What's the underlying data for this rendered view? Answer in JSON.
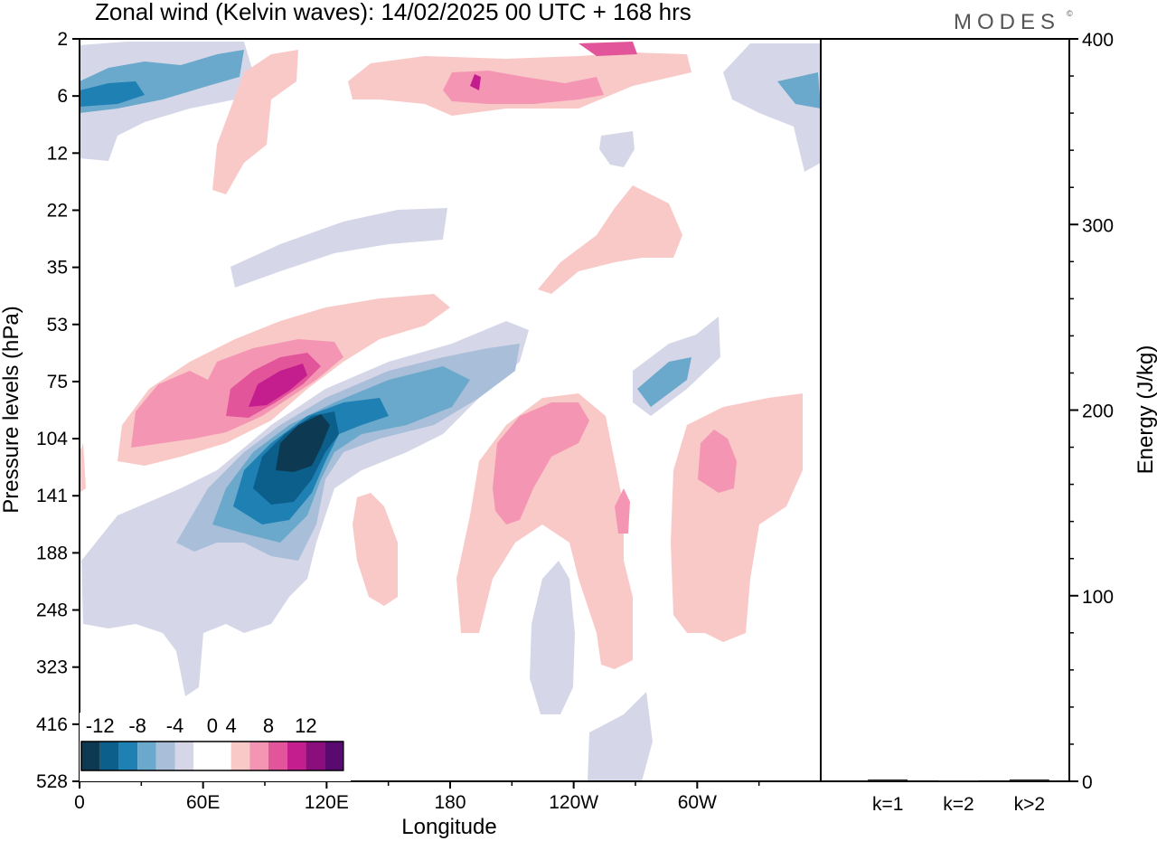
{
  "chart_data": [
    {
      "type": "heatmap",
      "title": "Zonal wind (Kelvin waves):  14/02/2025  00 UTC  + 168 hrs",
      "brand": "MODES",
      "brand_mark": "©",
      "xlabel": "Longitude",
      "ylabel": "Pressure levels (hPa)",
      "x_ticks": [
        "0",
        "60E",
        "120E",
        "180",
        "120W",
        "60W"
      ],
      "x_tick_values": [
        0,
        60,
        120,
        180,
        240,
        300
      ],
      "xlim": [
        0,
        360
      ],
      "y_ticks": [
        "2",
        "6",
        "12",
        "22",
        "35",
        "53",
        "75",
        "104",
        "141",
        "188",
        "248",
        "323",
        "416",
        "528"
      ],
      "y_axis_scale": "categorical pressure levels, top to bottom",
      "legend": {
        "labels": [
          "-12",
          "-8",
          "-4",
          "0",
          "4",
          "8",
          "12"
        ],
        "levels": [
          -14,
          -12,
          -10,
          -8,
          -6,
          -4,
          -2,
          2,
          4,
          6,
          8,
          10,
          12,
          14
        ],
        "colors": [
          "#0d3a52",
          "#0b5f8a",
          "#1f80b4",
          "#6aa9cc",
          "#a9bed9",
          "#d5d7e8",
          "#ffffff",
          "#ffffff",
          "#f9c9c8",
          "#f595b4",
          "#e2559a",
          "#c41e8e",
          "#8a0f7c",
          "#5a0a6e"
        ],
        "placement": "bottom-left"
      },
      "fields": [
        {
          "name": "blue-core",
          "lon_range": [
            82,
            130
          ],
          "level_range": [
            "75",
            "141"
          ],
          "min_value": -14
        },
        {
          "name": "pink-core",
          "lon_range": [
            60,
            115
          ],
          "level_range": [
            "53",
            "104"
          ],
          "max_value": 10
        },
        {
          "name": "pink-right",
          "lon_range": [
            195,
            265
          ],
          "level_range": [
            "75",
            "323"
          ],
          "max_value": 6
        },
        {
          "name": "pink-far-right",
          "lon_range": [
            285,
            350
          ],
          "level_range": [
            "75",
            "248"
          ],
          "max_value": 6
        }
      ]
    },
    {
      "type": "bar",
      "categories": [
        "k=1",
        "k=2",
        "k>2"
      ],
      "values": [
        1,
        0.5,
        1
      ],
      "ylabel": "Energy (J/kg)",
      "ylim": [
        0,
        400
      ],
      "y_ticks": [
        "0",
        "100",
        "200",
        "300",
        "400"
      ],
      "y_tick_values": [
        0,
        100,
        200,
        300,
        400
      ],
      "y_minor_step": 20,
      "y_axis_side": "right"
    }
  ]
}
